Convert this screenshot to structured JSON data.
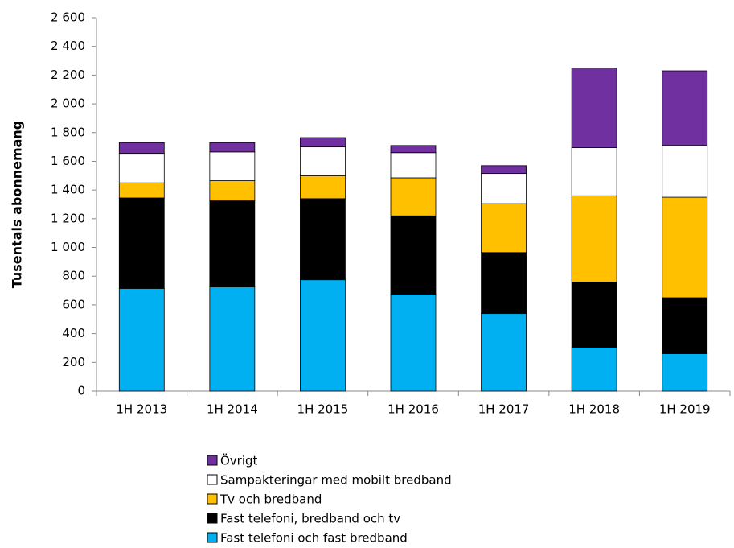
{
  "chart_data": {
    "type": "stacked_bar",
    "y_label": "Tusentals abonnemang",
    "categories": [
      "1H 2013",
      "1H 2014",
      "1H 2015",
      "1H 2016",
      "1H 2017",
      "1H 2018",
      "1H 2019"
    ],
    "series": [
      {
        "name": "Fast telefoni och fast bredband",
        "color": "#00b0f0",
        "values": [
          715,
          725,
          775,
          675,
          540,
          305,
          260
        ]
      },
      {
        "name": "Fast telefoni, bredband och tv",
        "color": "#000000",
        "values": [
          630,
          600,
          565,
          545,
          425,
          455,
          390
        ]
      },
      {
        "name": "Tv och bredband",
        "color": "#ffc000",
        "values": [
          105,
          140,
          160,
          265,
          340,
          600,
          700
        ]
      },
      {
        "name": "Sampakteringar med mobilt bredband",
        "color": "#ffffff",
        "values": [
          205,
          200,
          200,
          175,
          210,
          335,
          360
        ]
      },
      {
        "name": "Övrigt",
        "color": "#7030a0",
        "values": [
          75,
          65,
          65,
          50,
          55,
          555,
          520
        ]
      }
    ],
    "ylim": [
      0,
      2600
    ],
    "yticks": [
      0,
      200,
      400,
      600,
      800,
      {
        "value": 1000,
        "label": "1 000"
      },
      {
        "value": 1200,
        "label": "1 200"
      },
      {
        "value": 1400,
        "label": "1 400"
      },
      {
        "value": 1600,
        "label": "1 600"
      },
      {
        "value": 1800,
        "label": "1 800"
      },
      {
        "value": 2000,
        "label": "2 000"
      },
      {
        "value": 2200,
        "label": "2 200"
      },
      {
        "value": 2400,
        "label": "2 400"
      },
      {
        "value": 2600,
        "label": "2 600"
      }
    ],
    "legend": "bottom"
  }
}
